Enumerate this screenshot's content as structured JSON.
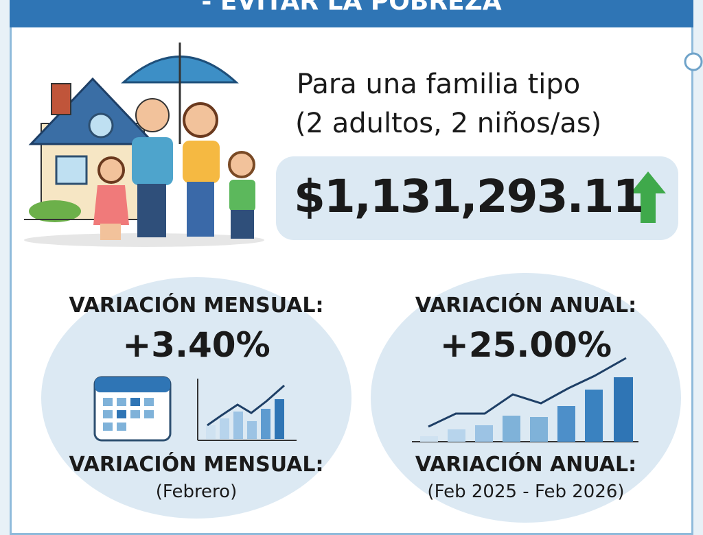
{
  "header": {
    "title": "- EVITAR LA POBREZA"
  },
  "family": {
    "line1": "Para una familia tipo",
    "line2": "(2 adultos, 2 niños/as)",
    "amount": "$1,131,293.11"
  },
  "monthly": {
    "heading": "VARIACIÓN MENSUAL:",
    "value": "+3.40%",
    "label": "VARIACIÓN MENSUAL:",
    "period": "(Febrero)"
  },
  "annual": {
    "heading": "VARIACIÓN ANUAL:",
    "value": "+25.00%",
    "label": "VARIACIÓN ANUAL:",
    "period": "(Feb 2025 - Feb 2026)"
  }
}
